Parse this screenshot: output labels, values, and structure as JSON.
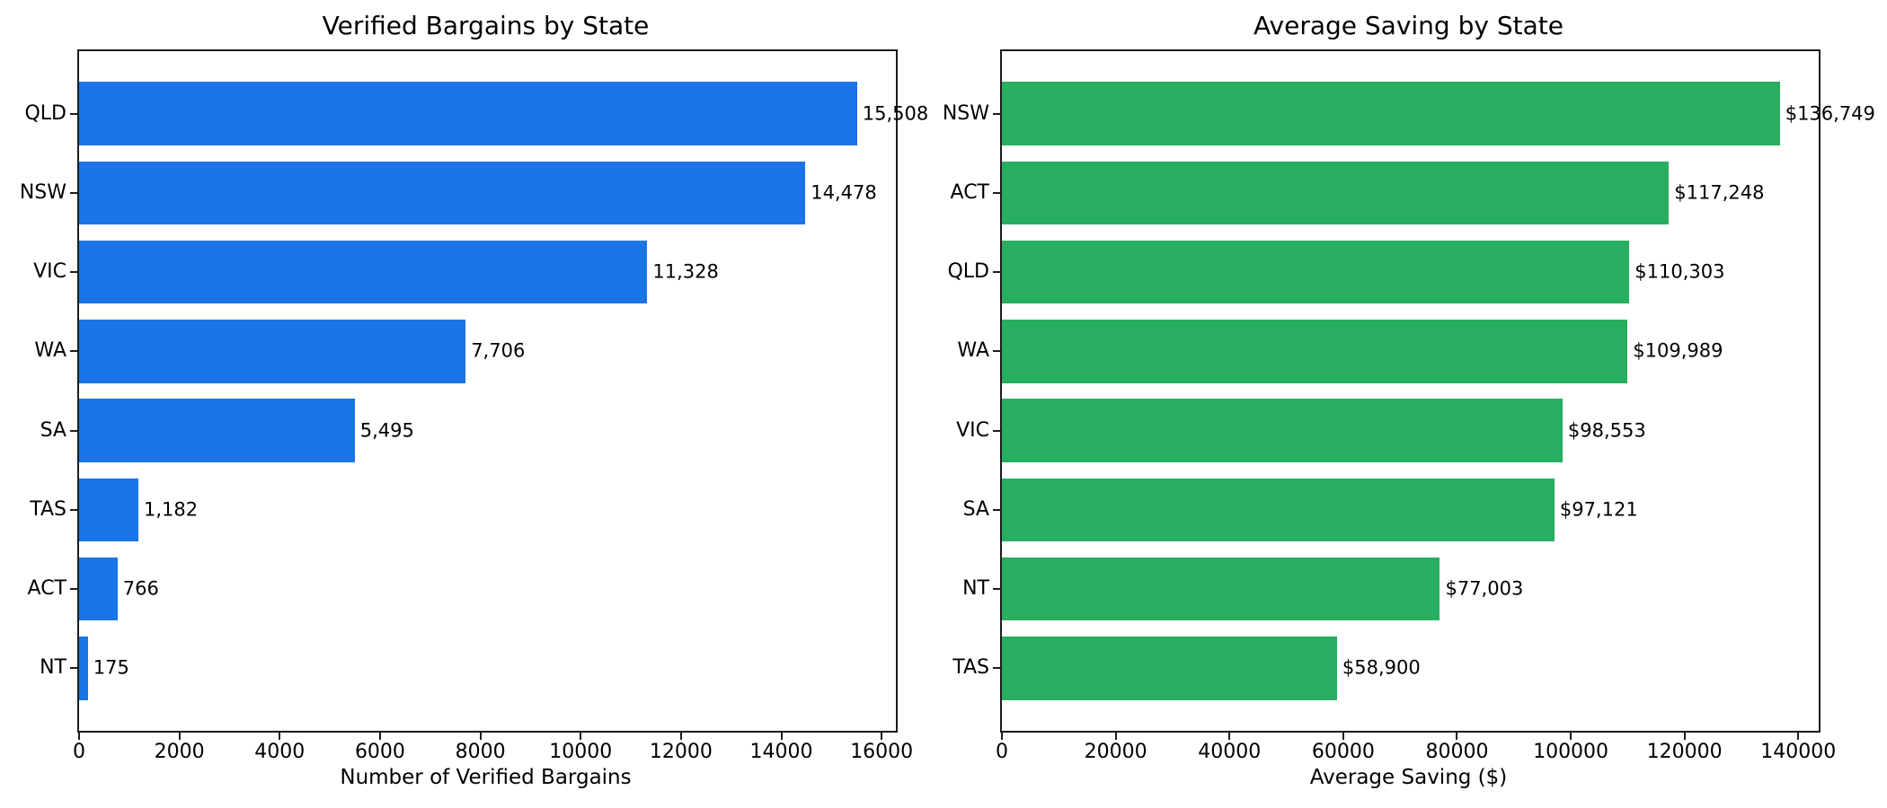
{
  "figure": {
    "background_color": "#ffffff",
    "axis_color": "#1c1c1c",
    "text_color": "#000000"
  },
  "chart_data": [
    {
      "type": "bar",
      "orientation": "horizontal",
      "title": "Verified Bargains by State",
      "xlabel": "Number of Verified Bargains",
      "ylabel": "",
      "categories": [
        "QLD",
        "NSW",
        "VIC",
        "WA",
        "SA",
        "TAS",
        "ACT",
        "NT"
      ],
      "values": [
        15508,
        14478,
        11328,
        7706,
        5495,
        1182,
        766,
        175
      ],
      "value_labels": [
        "15,508",
        "14,478",
        "11,328",
        "7,706",
        "5,495",
        "1,182",
        "766",
        "175"
      ],
      "bar_color": "#1b74e8",
      "xlim": [
        0,
        16283
      ],
      "xticks": [
        0,
        2000,
        4000,
        6000,
        8000,
        10000,
        12000,
        14000,
        16000
      ],
      "xtick_labels": [
        "0",
        "2000",
        "4000",
        "6000",
        "8000",
        "10000",
        "12000",
        "14000",
        "16000"
      ],
      "grid": false,
      "legend": null
    },
    {
      "type": "bar",
      "orientation": "horizontal",
      "title": "Average Saving by State",
      "xlabel": "Average Saving ($)",
      "ylabel": "",
      "categories": [
        "NSW",
        "ACT",
        "QLD",
        "WA",
        "VIC",
        "SA",
        "NT",
        "TAS"
      ],
      "values": [
        136749,
        117248,
        110303,
        109989,
        98553,
        97121,
        77003,
        58900
      ],
      "value_labels": [
        "$136,749",
        "$117,248",
        "$110,303",
        "$109,989",
        "$98,553",
        "$97,121",
        "$77,003",
        "$58,900"
      ],
      "bar_color": "#27ae60",
      "xlim": [
        0,
        143586
      ],
      "xticks": [
        0,
        20000,
        40000,
        60000,
        80000,
        100000,
        120000,
        140000
      ],
      "xtick_labels": [
        "0",
        "20000",
        "40000",
        "60000",
        "80000",
        "100000",
        "120000",
        "140000"
      ],
      "grid": false,
      "legend": null
    }
  ]
}
